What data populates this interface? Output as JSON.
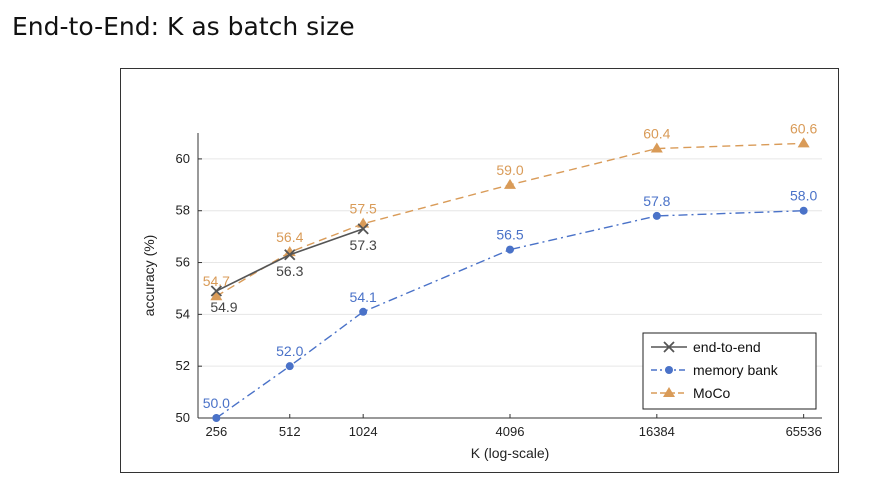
{
  "slide": {
    "title": "End-to-End: K as batch size"
  },
  "chart_data": {
    "type": "line",
    "title": "",
    "xlabel": "K (log-scale)",
    "ylabel": "accuracy (%)",
    "xscale": "log",
    "categories": [
      "256",
      "512",
      "1024",
      "4096",
      "16384",
      "65536"
    ],
    "x": [
      256,
      512,
      1024,
      4096,
      16384,
      65536
    ],
    "yticks": [
      "50",
      "52",
      "54",
      "56",
      "58",
      "60"
    ],
    "ylim": [
      50,
      61
    ],
    "grid": true,
    "legend_position": "bottom-right",
    "series": [
      {
        "name": "end-to-end",
        "color": "#555555",
        "marker": "x",
        "linestyle": "solid",
        "x": [
          256,
          512,
          1024
        ],
        "values": [
          54.9,
          56.3,
          57.3
        ],
        "labels": [
          "54.9",
          "56.3",
          "57.3"
        ]
      },
      {
        "name": "memory bank",
        "color": "#4a72c8",
        "marker": "circle",
        "linestyle": "dash-dot",
        "x": [
          256,
          512,
          1024,
          4096,
          16384,
          65536
        ],
        "values": [
          50.0,
          52.0,
          54.1,
          56.5,
          57.8,
          58.0
        ],
        "labels": [
          "50.0",
          "52.0",
          "54.1",
          "56.5",
          "57.8",
          "58.0"
        ]
      },
      {
        "name": "MoCo",
        "color": "#d99b58",
        "marker": "triangle",
        "linestyle": "dashed",
        "x": [
          256,
          512,
          1024,
          4096,
          16384,
          65536
        ],
        "values": [
          54.7,
          56.4,
          57.5,
          59.0,
          60.4,
          60.6
        ],
        "labels": [
          "54.7",
          "56.4",
          "57.5",
          "59.0",
          "60.4",
          "60.6"
        ]
      }
    ]
  }
}
